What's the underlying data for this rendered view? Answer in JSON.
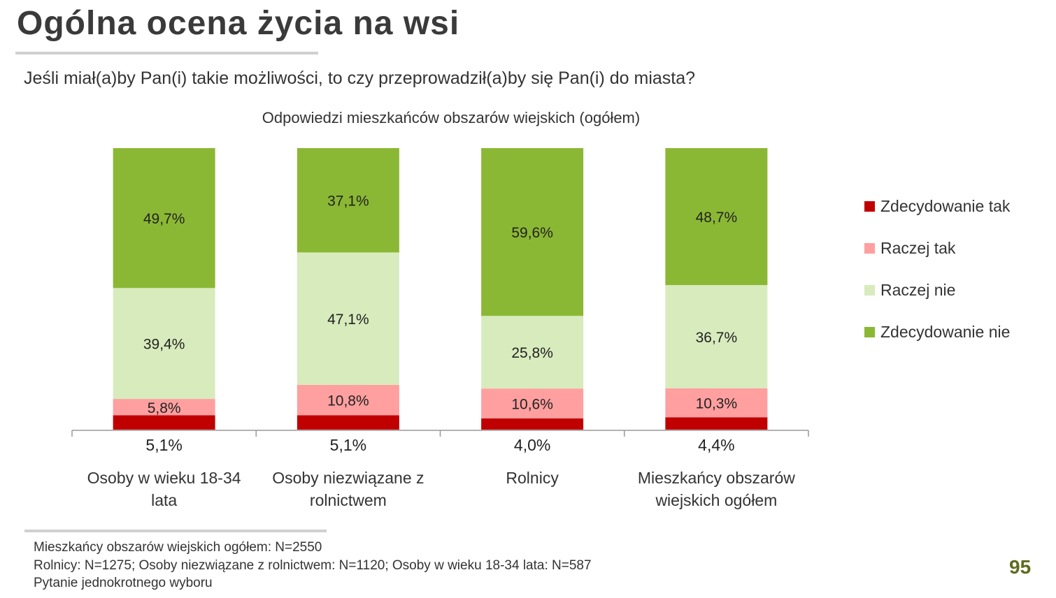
{
  "title": "Ogólna ocena życia na wsi",
  "question": "Jeśli miał(a)by Pan(i) takie możliwości, to czy przeprowadził(a)by się Pan(i) do miasta?",
  "chart_data": {
    "type": "bar",
    "stacked": true,
    "title": "Odpowiedzi mieszkańców obszarów wiejskich (ogółem)",
    "categories": [
      "Osoby w wieku 18-34 lata",
      "Osoby niezwiązane z rolnictwem",
      "Rolnicy",
      "Mieszkańcy obszarów wiejskich ogółem"
    ],
    "ylim": [
      0,
      100
    ],
    "legend_position": "right",
    "series": [
      {
        "name": "Zdecydowanie tak",
        "color": "#C00000",
        "values": [
          5.1,
          5.1,
          4.0,
          4.4
        ],
        "labels": [
          "5,1%",
          "5,1%",
          "4,0%",
          "4,4%"
        ]
      },
      {
        "name": "Raczej tak",
        "color": "#FF9F9F",
        "values": [
          5.8,
          10.8,
          10.6,
          10.3
        ],
        "labels": [
          "5,8%",
          "10,8%",
          "10,6%",
          "10,3%"
        ]
      },
      {
        "name": "Raczej nie",
        "color": "#D8EBBD",
        "values": [
          39.4,
          47.1,
          25.8,
          36.7
        ],
        "labels": [
          "39,4%",
          "47,1%",
          "25,8%",
          "36,7%"
        ]
      },
      {
        "name": "Zdecydowanie nie",
        "color": "#8BB834",
        "values": [
          49.7,
          37.1,
          59.6,
          48.7
        ],
        "labels": [
          "49,7%",
          "37,1%",
          "59,6%",
          "48,7%"
        ]
      }
    ]
  },
  "footer": [
    "Mieszkańcy obszarów wiejskich ogółem: N=2550",
    "Rolnicy: N=1275; Osoby niezwiązane z rolnictwem: N=1120; Osoby w wieku 18-34 lata: N=587",
    "Pytanie jednokrotnego wyboru"
  ],
  "page_number": "95"
}
